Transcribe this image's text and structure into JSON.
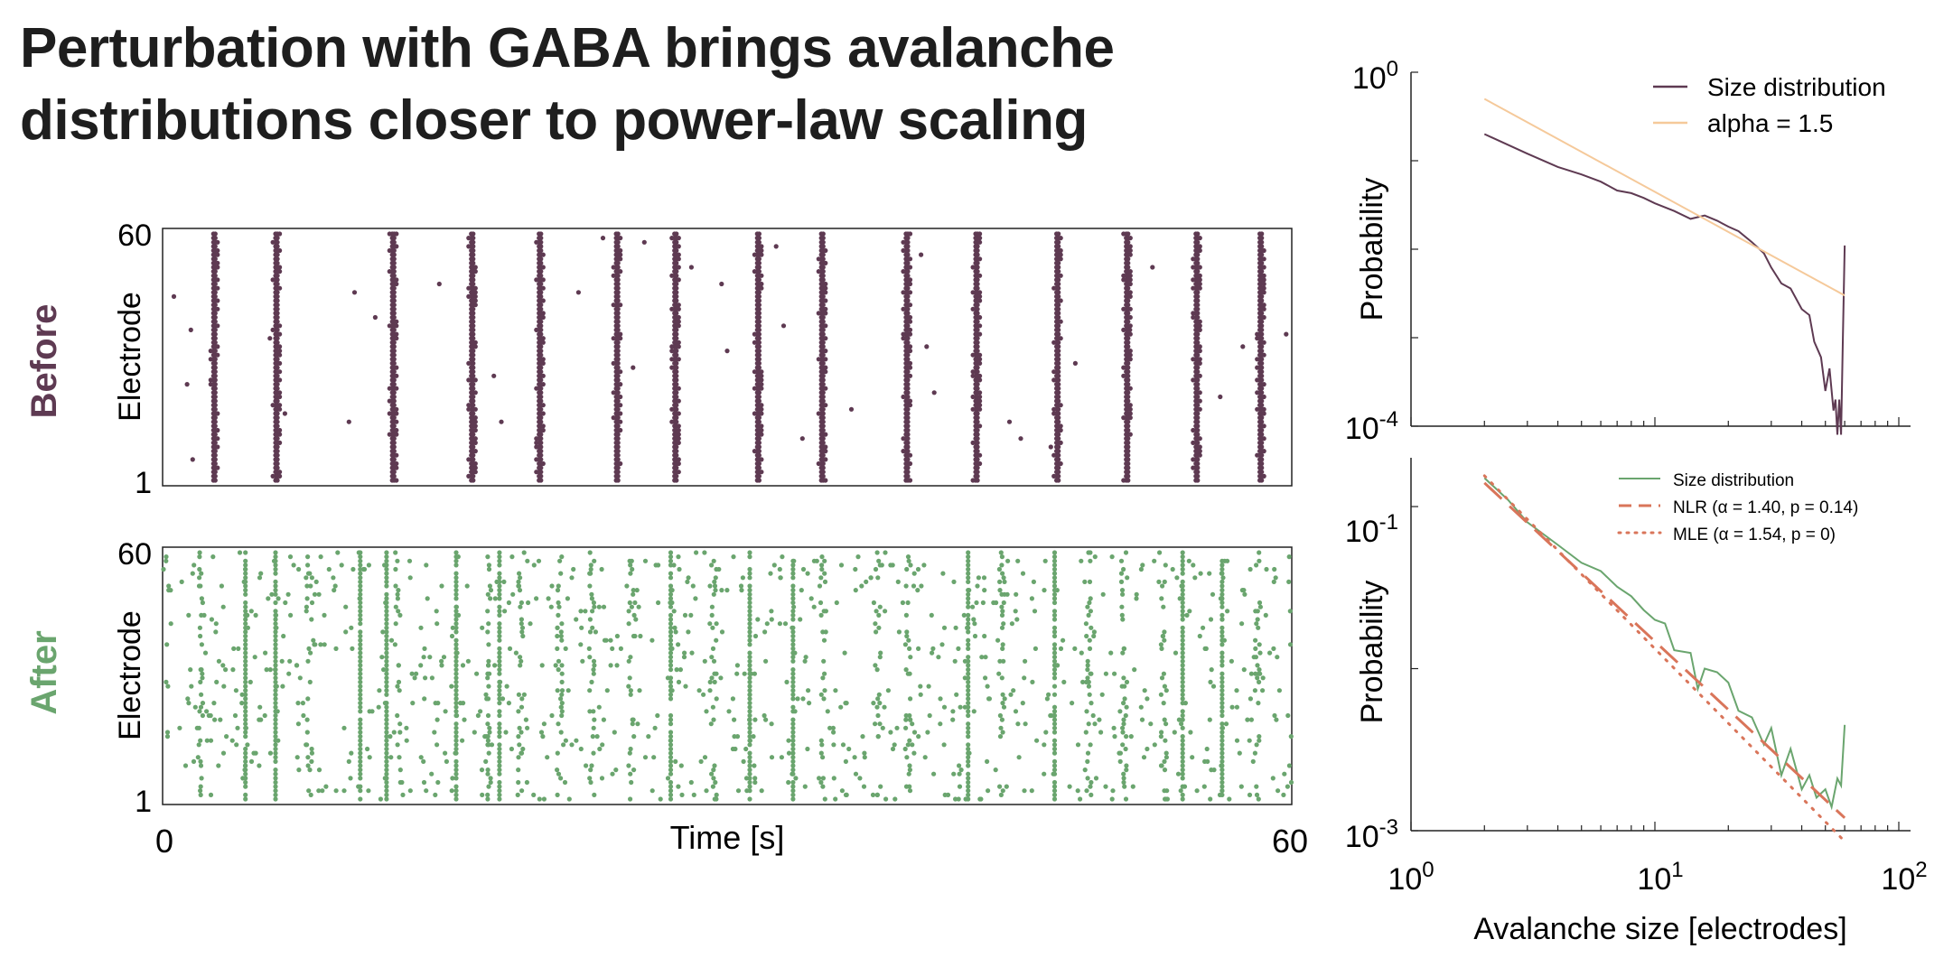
{
  "title": {
    "line1": "Perturbation with GABA brings avalanche",
    "line2": "distributions closer to power-law scaling"
  },
  "colors": {
    "before": "#5e3a52",
    "after": "#6aa56e",
    "alpha_line": "#f5c99a",
    "fit": "#d9755a",
    "axis": "#222222"
  },
  "chart_data": [
    {
      "type": "scatter",
      "name": "raster-before",
      "row_label": "Before",
      "ylabel": "Electrode",
      "xlabel": "",
      "xlim": [
        0,
        60
      ],
      "ylim": [
        1,
        60
      ],
      "ytick_labels": [
        "60",
        "1"
      ],
      "burst_times_s": [
        2.7,
        6.0,
        12.2,
        16.4,
        20.0,
        24.1,
        27.2,
        31.6,
        35.0,
        39.5,
        43.2,
        47.5,
        51.2,
        54.9,
        58.3
      ],
      "sparse_events": [
        [
          0.6,
          45
        ],
        [
          1.5,
          37
        ],
        [
          1.3,
          24
        ],
        [
          1.6,
          6
        ],
        [
          5.7,
          35
        ],
        [
          6.5,
          17
        ],
        [
          9.9,
          15
        ],
        [
          10.2,
          46
        ],
        [
          11.3,
          40
        ],
        [
          14.7,
          48
        ],
        [
          17.6,
          26
        ],
        [
          18.0,
          15
        ],
        [
          23.4,
          59
        ],
        [
          22.1,
          46
        ],
        [
          25.6,
          58
        ],
        [
          25.0,
          28
        ],
        [
          28.1,
          52
        ],
        [
          29.7,
          48
        ],
        [
          30.0,
          32
        ],
        [
          32.6,
          57
        ],
        [
          33.0,
          38
        ],
        [
          34.0,
          11
        ],
        [
          36.6,
          18
        ],
        [
          40.3,
          55
        ],
        [
          40.6,
          33
        ],
        [
          41.0,
          22
        ],
        [
          45.0,
          15
        ],
        [
          45.6,
          11
        ],
        [
          47.2,
          9
        ],
        [
          48.5,
          29
        ],
        [
          51.4,
          37
        ],
        [
          52.6,
          52
        ],
        [
          56.2,
          21
        ],
        [
          57.4,
          33
        ],
        [
          59.7,
          36
        ]
      ],
      "color": "#5e3a52"
    },
    {
      "type": "scatter",
      "name": "raster-after",
      "row_label": "After",
      "ylabel": "Electrode",
      "xlabel": "Time [s]",
      "xlim": [
        0,
        60
      ],
      "ylim": [
        1,
        60
      ],
      "ytick_labels": [
        "60",
        "1"
      ],
      "xtick_labels": [
        "0",
        "60"
      ],
      "strong_burst_times_s": [
        4.4,
        6.0,
        10.5,
        11.9,
        15.6,
        17.9,
        27.0,
        31.2,
        33.5,
        42.8,
        47.4,
        54.2,
        56.3
      ],
      "partial_burst_times_s": [
        2.0,
        7.8,
        12.5,
        17.3,
        19.0,
        21.1,
        22.8,
        24.9,
        29.3,
        35.1,
        38.0,
        39.6,
        44.6,
        49.2,
        51.1,
        53.2,
        58.2
      ],
      "color": "#6aa56e"
    },
    {
      "type": "line",
      "name": "size-distribution-before",
      "xscale": "log",
      "yscale": "log",
      "xlim": [
        1,
        100
      ],
      "ylim": [
        0.0001,
        1
      ],
      "ylabel": "Probability",
      "ytick_labels": [
        "10^0",
        "10^-4"
      ],
      "series": [
        {
          "name": "Size distribution",
          "color": "#5e3a52",
          "x": [
            2,
            3,
            4,
            5,
            6,
            7,
            8,
            9,
            10,
            12,
            14,
            16,
            18,
            20,
            22,
            25,
            28,
            30,
            33,
            36,
            40,
            43,
            45,
            48,
            50,
            52,
            54,
            55,
            56,
            57,
            58,
            59,
            60
          ],
          "y": [
            0.2,
            0.12,
            0.085,
            0.07,
            0.058,
            0.046,
            0.043,
            0.038,
            0.033,
            0.027,
            0.022,
            0.024,
            0.021,
            0.018,
            0.016,
            0.012,
            0.009,
            0.0062,
            0.0041,
            0.0036,
            0.0021,
            0.0018,
            0.0009,
            0.0006,
            0.00025,
            0.00045,
            0.00015,
            0.0002,
            8e-05,
            0.0002,
            8e-05,
            0.001,
            0.011
          ]
        },
        {
          "name": "alpha = 1.5",
          "color": "#f5c99a",
          "x": [
            2,
            60
          ],
          "y": [
            0.5,
            0.003
          ]
        }
      ],
      "legend": [
        "Size distribution",
        "alpha = 1.5"
      ],
      "legend_position": "top-right"
    },
    {
      "type": "line",
      "name": "size-distribution-after",
      "xscale": "log",
      "yscale": "log",
      "xlim": [
        1,
        100
      ],
      "ylim": [
        0.001,
        0.2
      ],
      "ylabel": "Probability",
      "xlabel": "Avalanche size [electrodes]",
      "ytick_labels": [
        "10^-1",
        "10^-3"
      ],
      "xtick_labels": [
        "10^0",
        "10^1",
        "10^2"
      ],
      "series": [
        {
          "name": "Size distribution",
          "color": "#6aa56e",
          "style": "solid",
          "x": [
            2,
            2.5,
            3,
            4,
            5,
            6,
            7,
            8,
            9,
            10,
            11,
            12,
            14,
            15,
            16,
            18,
            20,
            22,
            25,
            28,
            30,
            33,
            36,
            40,
            43,
            46,
            50,
            53,
            56,
            58,
            60
          ],
          "y": [
            0.15,
            0.11,
            0.08,
            0.058,
            0.045,
            0.04,
            0.032,
            0.028,
            0.023,
            0.02,
            0.019,
            0.013,
            0.0125,
            0.0075,
            0.01,
            0.0095,
            0.0082,
            0.0055,
            0.005,
            0.0034,
            0.0043,
            0.0022,
            0.0032,
            0.0018,
            0.0022,
            0.0016,
            0.0018,
            0.0014,
            0.0021,
            0.0019,
            0.0045
          ]
        },
        {
          "name": "NLR (α = 1.40, p = 0.14)",
          "color": "#d9755a",
          "style": "dashed",
          "x": [
            2,
            60
          ],
          "y": [
            0.14,
            0.0012
          ]
        },
        {
          "name": "MLE (α = 1.54, p = 0)",
          "color": "#d9755a",
          "style": "dotted",
          "x": [
            2,
            60
          ],
          "y": [
            0.155,
            0.00086
          ]
        }
      ],
      "legend": [
        "Size distribution",
        "NLR (α = 1.40, p = 0.14)",
        "MLE (α = 1.54, p = 0)"
      ],
      "legend_position": "top-right"
    }
  ]
}
